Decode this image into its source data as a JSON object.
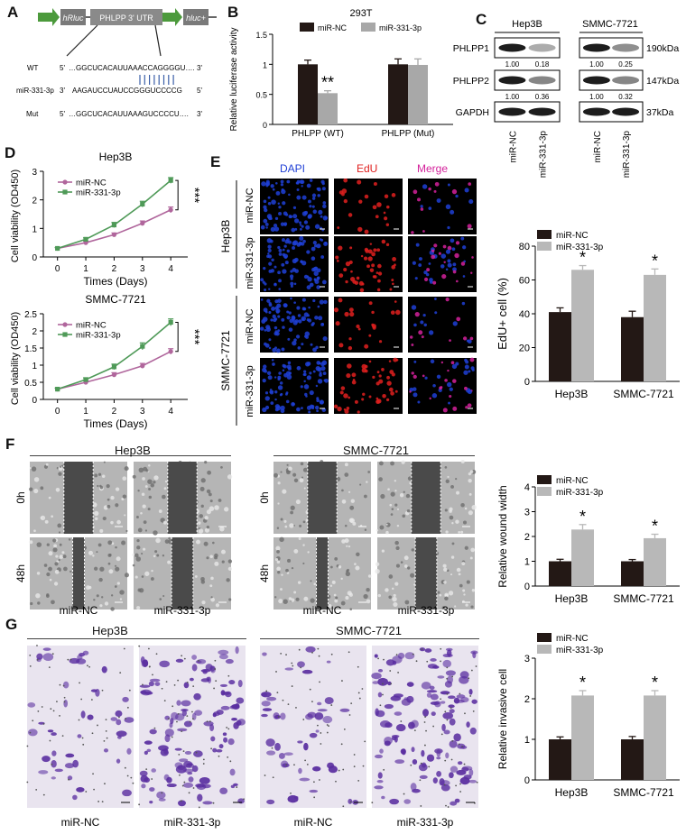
{
  "panels": {
    "A": "A",
    "B": "B",
    "C": "C",
    "D": "D",
    "E": "E",
    "F": "F",
    "G": "G"
  },
  "panelA": {
    "hrluc": "hRluc",
    "utr": "PHLPP 3' UTR",
    "hluc": "hluc+",
    "wt_label": "WT",
    "wt_5": "5'",
    "wt_seq": "…GGCUCACAUUAAACCAGGGGU….",
    "wt_3": "3'",
    "mir_label": "miR-331-3p",
    "mir_3": "3'",
    "mir_seq": "AAGAUCCUAUCCGGGUCCCCG",
    "mir_5": "5'",
    "mut_label": "Mut",
    "mut_5": "5'",
    "mut_seq": "…GGCUCACAUUAAAGUCCCCU….",
    "mut_3": "3'"
  },
  "chart_data": [
    {
      "id": "B",
      "type": "bar",
      "title": "293T",
      "ylabel": "Relative luciferase activity",
      "ylim": [
        0,
        1.5
      ],
      "yticks": [
        0,
        0.5,
        1.0,
        1.5
      ],
      "categories": [
        "PHLPP (WT)",
        "PHLPP (Mut)"
      ],
      "series": [
        {
          "name": "miR-NC",
          "color": "#231815",
          "values": [
            1.0,
            1.0
          ],
          "errors": [
            0.07,
            0.09
          ]
        },
        {
          "name": "miR-331-3p",
          "color": "#a8a8a8",
          "values": [
            0.52,
            0.99
          ],
          "errors": [
            0.04,
            0.1
          ]
        }
      ],
      "annotations": [
        {
          "text": "**",
          "category": 0,
          "series": 1
        }
      ]
    },
    {
      "id": "D1",
      "type": "line",
      "title": "Hep3B",
      "xlabel": "Times (Days)",
      "ylabel": "Cell viability (OD450)",
      "x": [
        0,
        1,
        2,
        3,
        4
      ],
      "xlim": [
        -0.5,
        4.6
      ],
      "ylim": [
        0,
        3
      ],
      "yticks": [
        0,
        1,
        2,
        3
      ],
      "series": [
        {
          "name": "miR-NC",
          "color": "#b0669c",
          "values": [
            0.3,
            0.5,
            0.78,
            1.18,
            1.65
          ],
          "errors": [
            0.03,
            0.05,
            0.06,
            0.08,
            0.1
          ]
        },
        {
          "name": "miR-331-3p",
          "color": "#4f9a58",
          "values": [
            0.3,
            0.62,
            1.12,
            1.85,
            2.68
          ],
          "errors": [
            0.03,
            0.05,
            0.09,
            0.1,
            0.1
          ]
        }
      ],
      "significance": "***"
    },
    {
      "id": "D2",
      "type": "line",
      "title": "SMMC-7721",
      "xlabel": "Times (Days)",
      "ylabel": "Cell viability (OD450)",
      "x": [
        0,
        1,
        2,
        3,
        4
      ],
      "xlim": [
        -0.5,
        4.6
      ],
      "ylim": [
        0,
        2.5
      ],
      "yticks": [
        0,
        0.5,
        1.0,
        1.5,
        2.0,
        2.5
      ],
      "series": [
        {
          "name": "miR-NC",
          "color": "#b0669c",
          "values": [
            0.3,
            0.5,
            0.72,
            0.98,
            1.4
          ],
          "errors": [
            0.03,
            0.05,
            0.06,
            0.07,
            0.08
          ]
        },
        {
          "name": "miR-331-3p",
          "color": "#4f9a58",
          "values": [
            0.3,
            0.58,
            0.95,
            1.55,
            2.25
          ],
          "errors": [
            0.03,
            0.05,
            0.08,
            0.1,
            0.1
          ]
        }
      ],
      "significance": "***"
    },
    {
      "id": "E",
      "type": "bar",
      "ylabel": "EdU+ cell (%)",
      "ylim": [
        0,
        80
      ],
      "yticks": [
        0,
        20,
        40,
        60,
        80
      ],
      "categories": [
        "Hep3B",
        "SMMC-7721"
      ],
      "series": [
        {
          "name": "miR-NC",
          "color": "#231815",
          "values": [
            41,
            38
          ],
          "errors": [
            2.5,
            3.5
          ]
        },
        {
          "name": "miR-331-3p",
          "color": "#b8b8b8",
          "values": [
            66,
            63
          ],
          "errors": [
            2.5,
            3.5
          ]
        }
      ],
      "annotations": [
        {
          "text": "*",
          "category": 0,
          "series": 1
        },
        {
          "text": "*",
          "category": 1,
          "series": 1
        }
      ]
    },
    {
      "id": "F",
      "type": "bar",
      "ylabel": "Relative wound width",
      "ylim": [
        0,
        4
      ],
      "yticks": [
        0,
        1,
        2,
        3,
        4
      ],
      "categories": [
        "Hep3B",
        "SMMC-7721"
      ],
      "series": [
        {
          "name": "miR-NC",
          "color": "#231815",
          "values": [
            1.0,
            1.0
          ],
          "errors": [
            0.08,
            0.07
          ]
        },
        {
          "name": "miR-331-3p",
          "color": "#b8b8b8",
          "values": [
            2.28,
            1.93
          ],
          "errors": [
            0.2,
            0.16
          ]
        }
      ],
      "annotations": [
        {
          "text": "*",
          "category": 0,
          "series": 1
        },
        {
          "text": "*",
          "category": 1,
          "series": 1
        }
      ]
    },
    {
      "id": "G",
      "type": "bar",
      "ylabel": "Relative invasive cell",
      "ylim": [
        0,
        3
      ],
      "yticks": [
        0,
        1,
        2,
        3
      ],
      "categories": [
        "Hep3B",
        "SMMC-7721"
      ],
      "series": [
        {
          "name": "miR-NC",
          "color": "#231815",
          "values": [
            1.0,
            1.0
          ],
          "errors": [
            0.06,
            0.07
          ]
        },
        {
          "name": "miR-331-3p",
          "color": "#b8b8b8",
          "values": [
            2.08,
            2.08
          ],
          "errors": [
            0.12,
            0.12
          ]
        }
      ],
      "annotations": [
        {
          "text": "*",
          "category": 0,
          "series": 1
        },
        {
          "text": "*",
          "category": 1,
          "series": 1
        }
      ]
    }
  ],
  "panelC": {
    "cell1": "Hep3B",
    "cell2": "SMMC-7721",
    "rows": [
      {
        "label": "PHLPP1",
        "size": "190kDa",
        "q": [
          "1.00",
          "0.18",
          "1.00",
          "0.25"
        ],
        "int": [
          1,
          0.25,
          1,
          0.4
        ]
      },
      {
        "label": "PHLPP2",
        "size": "147kDa",
        "q": [
          "1.00",
          "0.36",
          "1.00",
          "0.32"
        ],
        "int": [
          1,
          0.45,
          1,
          0.45
        ]
      },
      {
        "label": "GAPDH",
        "size": "37kDa",
        "q": [],
        "int": [
          1,
          1,
          1,
          1
        ]
      }
    ],
    "lanes": [
      "miR-NC",
      "miR-331-3p",
      "miR-NC",
      "miR-331-3p"
    ]
  },
  "panelE": {
    "dapi": "DAPI",
    "edu": "EdU",
    "merge": "Merge",
    "cell1": "Hep3B",
    "cell2": "SMMC-7721",
    "row1": "miR-NC",
    "row2": "miR-331-3p"
  },
  "panelF": {
    "cell1": "Hep3B",
    "cell2": "SMMC-7721",
    "t0": "0h",
    "t48": "48h",
    "col1": "miR-NC",
    "col2": "miR-331-3p"
  },
  "panelG": {
    "cell1": "Hep3B",
    "cell2": "SMMC-7721",
    "col1": "miR-NC",
    "col2": "miR-331-3p"
  },
  "colors": {
    "dapi": "#1f3fd6",
    "edu": "#e0201f",
    "merge": "#d4219b",
    "green_arrow": "#4c9a3c",
    "box": "#7a7a7a",
    "crystal": "#5a2ea0"
  }
}
